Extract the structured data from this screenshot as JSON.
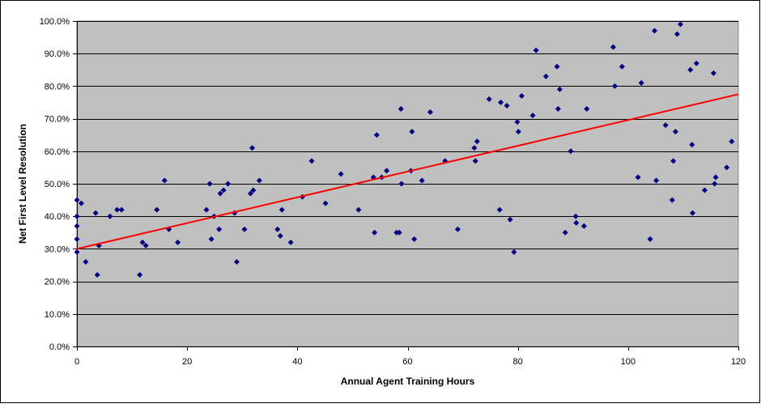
{
  "chart_data": {
    "type": "scatter",
    "title": "",
    "xlabel": "Annual Agent Training Hours",
    "ylabel": "Net First Level Resolution",
    "xlim": [
      0,
      120
    ],
    "ylim": [
      0,
      1
    ],
    "x_ticks": [
      0,
      20,
      40,
      60,
      80,
      100,
      120
    ],
    "y_ticks": [
      0,
      0.1,
      0.2,
      0.3,
      0.4,
      0.5,
      0.6,
      0.7,
      0.8,
      0.9,
      1.0
    ],
    "x_tick_labels": [
      "0",
      "20",
      "40",
      "60",
      "80",
      "100",
      "120"
    ],
    "y_tick_labels": [
      "0.0%",
      "10.0%",
      "20.0%",
      "30.0%",
      "40.0%",
      "50.0%",
      "60.0%",
      "70.0%",
      "80.0%",
      "90.0%",
      "100.0%"
    ],
    "grid": true,
    "legend": "none",
    "colors": {
      "plot_background": "#C0C0C0",
      "gridline": "#000000",
      "marker": "#000080",
      "trendline": "#FF0000"
    },
    "series": [
      {
        "marker": "diamond",
        "points": [
          [
            0.0,
            0.45
          ],
          [
            0.0,
            0.4
          ],
          [
            0.0,
            0.37
          ],
          [
            0.0,
            0.33
          ],
          [
            0.0,
            0.29
          ],
          [
            0.8,
            0.44
          ],
          [
            1.6,
            0.26
          ],
          [
            3.4,
            0.41
          ],
          [
            3.7,
            0.22
          ],
          [
            4.0,
            0.31
          ],
          [
            6.0,
            0.4
          ],
          [
            7.3,
            0.42
          ],
          [
            8.1,
            0.42
          ],
          [
            11.4,
            0.22
          ],
          [
            11.9,
            0.32
          ],
          [
            12.5,
            0.31
          ],
          [
            14.5,
            0.42
          ],
          [
            15.9,
            0.51
          ],
          [
            16.7,
            0.36
          ],
          [
            18.3,
            0.32
          ],
          [
            23.5,
            0.42
          ],
          [
            24.1,
            0.5
          ],
          [
            24.4,
            0.33
          ],
          [
            24.9,
            0.4
          ],
          [
            25.8,
            0.36
          ],
          [
            26.0,
            0.47
          ],
          [
            26.6,
            0.48
          ],
          [
            27.4,
            0.5
          ],
          [
            28.6,
            0.41
          ],
          [
            29.0,
            0.26
          ],
          [
            30.4,
            0.36
          ],
          [
            31.5,
            0.47
          ],
          [
            31.8,
            0.61
          ],
          [
            32.0,
            0.48
          ],
          [
            33.1,
            0.51
          ],
          [
            36.4,
            0.36
          ],
          [
            36.9,
            0.34
          ],
          [
            37.2,
            0.42
          ],
          [
            38.8,
            0.32
          ],
          [
            40.9,
            0.46
          ],
          [
            42.6,
            0.57
          ],
          [
            45.1,
            0.44
          ],
          [
            47.9,
            0.53
          ],
          [
            51.1,
            0.42
          ],
          [
            53.8,
            0.52
          ],
          [
            54.0,
            0.35
          ],
          [
            54.4,
            0.65
          ],
          [
            55.3,
            0.52
          ],
          [
            56.2,
            0.54
          ],
          [
            58.0,
            0.35
          ],
          [
            58.5,
            0.35
          ],
          [
            58.8,
            0.73
          ],
          [
            58.9,
            0.5
          ],
          [
            60.6,
            0.54
          ],
          [
            60.8,
            0.66
          ],
          [
            61.2,
            0.33
          ],
          [
            62.6,
            0.51
          ],
          [
            64.1,
            0.72
          ],
          [
            66.8,
            0.57
          ],
          [
            69.1,
            0.36
          ],
          [
            72.1,
            0.61
          ],
          [
            72.3,
            0.57
          ],
          [
            72.6,
            0.63
          ],
          [
            74.8,
            0.76
          ],
          [
            76.7,
            0.42
          ],
          [
            76.9,
            0.75
          ],
          [
            78.0,
            0.74
          ],
          [
            78.6,
            0.39
          ],
          [
            79.3,
            0.29
          ],
          [
            79.9,
            0.69
          ],
          [
            80.1,
            0.66
          ],
          [
            80.7,
            0.77
          ],
          [
            82.7,
            0.71
          ],
          [
            83.3,
            0.91
          ],
          [
            85.1,
            0.83
          ],
          [
            87.1,
            0.86
          ],
          [
            87.3,
            0.73
          ],
          [
            87.6,
            0.79
          ],
          [
            88.6,
            0.35
          ],
          [
            89.6,
            0.6
          ],
          [
            90.5,
            0.4
          ],
          [
            90.6,
            0.38
          ],
          [
            92.0,
            0.37
          ],
          [
            92.5,
            0.73
          ],
          [
            97.3,
            0.92
          ],
          [
            97.6,
            0.8
          ],
          [
            98.9,
            0.86
          ],
          [
            101.8,
            0.52
          ],
          [
            102.4,
            0.81
          ],
          [
            104.0,
            0.33
          ],
          [
            104.8,
            0.97
          ],
          [
            105.1,
            0.51
          ],
          [
            106.8,
            0.68
          ],
          [
            108.0,
            0.45
          ],
          [
            108.2,
            0.57
          ],
          [
            108.6,
            0.66
          ],
          [
            108.9,
            0.96
          ],
          [
            109.5,
            0.99
          ],
          [
            111.3,
            0.85
          ],
          [
            111.6,
            0.62
          ],
          [
            111.7,
            0.41
          ],
          [
            112.4,
            0.87
          ],
          [
            113.9,
            0.48
          ],
          [
            115.5,
            0.84
          ],
          [
            115.7,
            0.5
          ],
          [
            115.9,
            0.52
          ],
          [
            117.9,
            0.55
          ],
          [
            118.8,
            0.63
          ]
        ]
      }
    ],
    "trendline": {
      "type": "linear",
      "x": [
        0,
        120
      ],
      "y": [
        0.3,
        0.775
      ]
    }
  }
}
